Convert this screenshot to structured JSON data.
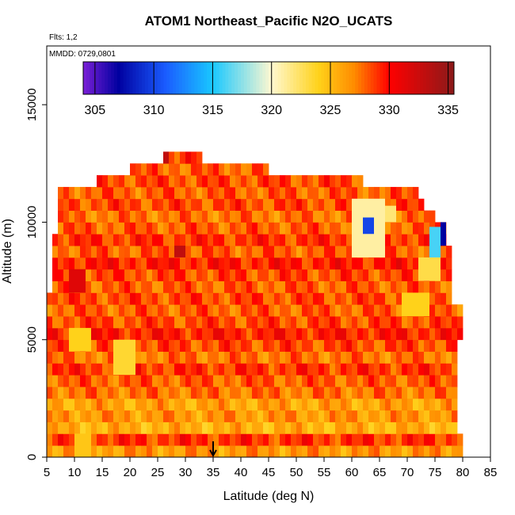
{
  "chart_data": {
    "type": "heatmap",
    "title": "ATOM1 Northeast_Pacific N2O_UCATS",
    "notes": [
      "Flts: 1,2",
      "MMDD: 0729,0801"
    ],
    "xlabel": "Latitude (deg N)",
    "ylabel": "Altitude (m)",
    "xlim": [
      5,
      85
    ],
    "ylim": [
      0,
      17500
    ],
    "xticks": [
      5,
      10,
      15,
      20,
      25,
      30,
      35,
      40,
      45,
      50,
      55,
      60,
      65,
      70,
      75,
      80,
      85
    ],
    "yticks": [
      0,
      5000,
      10000,
      15000
    ],
    "grid": false,
    "colorbar": {
      "placement": "top-inside",
      "min": 304,
      "max": 335.5,
      "ticks": [
        305,
        310,
        315,
        320,
        325,
        330,
        335
      ]
    },
    "marker": {
      "x": 35,
      "symbol": "down-arrow"
    },
    "colors": {
      "deep_purple": "#7a1fd6",
      "navy": "#0000a0",
      "blue": "#1a5cff",
      "cyan": "#19c8ff",
      "pale": "#fff8d0",
      "yellow": "#ffd21a",
      "orange": "#ff8c00",
      "red": "#ff0000",
      "dark_red": "#8b1a1a"
    },
    "bands": [
      {
        "y0": 0,
        "y1": 500,
        "x0": 5,
        "x1": 80,
        "value": 326.5
      },
      {
        "y0": 500,
        "y1": 1000,
        "x0": 5,
        "x1": 80,
        "value": 329
      },
      {
        "y0": 1000,
        "y1": 1500,
        "x0": 5,
        "x1": 79,
        "value": 325.5
      },
      {
        "y0": 1500,
        "y1": 2000,
        "x0": 5,
        "x1": 79,
        "value": 326.5
      },
      {
        "y0": 2000,
        "y1": 2500,
        "x0": 5,
        "x1": 79,
        "value": 326
      },
      {
        "y0": 2500,
        "y1": 3000,
        "x0": 5,
        "x1": 79,
        "value": 327.5
      },
      {
        "y0": 3000,
        "y1": 3500,
        "x0": 5,
        "x1": 79,
        "value": 328
      },
      {
        "y0": 3500,
        "y1": 4000,
        "x0": 5,
        "x1": 79,
        "value": 329
      },
      {
        "y0": 4000,
        "y1": 4500,
        "x0": 5,
        "x1": 79,
        "value": 327.5
      },
      {
        "y0": 4500,
        "y1": 5000,
        "x0": 5,
        "x1": 79,
        "value": 328.5
      },
      {
        "y0": 5000,
        "y1": 5500,
        "x0": 5,
        "x1": 80,
        "value": 329.5
      },
      {
        "y0": 5500,
        "y1": 6000,
        "x0": 5,
        "x1": 80,
        "value": 328.5
      },
      {
        "y0": 6000,
        "y1": 6500,
        "x0": 5,
        "x1": 80,
        "value": 328
      },
      {
        "y0": 6500,
        "y1": 7000,
        "x0": 5,
        "x1": 78,
        "value": 328.5
      },
      {
        "y0": 7000,
        "y1": 7500,
        "x0": 6,
        "x1": 78,
        "value": 328
      },
      {
        "y0": 7500,
        "y1": 8000,
        "x0": 6,
        "x1": 78,
        "value": 328.5
      },
      {
        "y0": 8000,
        "y1": 8500,
        "x0": 6,
        "x1": 78,
        "value": 329.5
      },
      {
        "y0": 8500,
        "y1": 9000,
        "x0": 6,
        "x1": 78,
        "value": 328
      },
      {
        "y0": 9000,
        "y1": 9500,
        "x0": 6,
        "x1": 77,
        "value": 329
      },
      {
        "y0": 9500,
        "y1": 10000,
        "x0": 7,
        "x1": 77,
        "value": 328
      },
      {
        "y0": 10000,
        "y1": 10500,
        "x0": 7,
        "x1": 75,
        "value": 327.5
      },
      {
        "y0": 10500,
        "y1": 11000,
        "x0": 7,
        "x1": 73,
        "value": 328.5
      },
      {
        "y0": 11000,
        "y1": 11500,
        "x0": 7,
        "x1": 72,
        "value": 328
      },
      {
        "y0": 11500,
        "y1": 12000,
        "x0": 14,
        "x1": 62,
        "value": 328.5
      },
      {
        "y0": 12000,
        "y1": 12500,
        "x0": 20,
        "x1": 45,
        "value": 328
      },
      {
        "y0": 12500,
        "y1": 13000,
        "x0": 26,
        "x1": 33,
        "value": 329
      }
    ],
    "patches": [
      {
        "y0": 8500,
        "y1": 11000,
        "x0": 60,
        "x1": 66,
        "value": 321
      },
      {
        "y0": 9500,
        "y1": 10200,
        "x0": 62,
        "x1": 64,
        "value": 310
      },
      {
        "y0": 10000,
        "y1": 10700,
        "x0": 66,
        "x1": 68,
        "value": 322
      },
      {
        "y0": 8200,
        "y1": 9800,
        "x0": 74,
        "x1": 76,
        "value": 316
      },
      {
        "y0": 9000,
        "y1": 10000,
        "x0": 76,
        "x1": 77,
        "value": 307
      },
      {
        "y0": 7500,
        "y1": 8500,
        "x0": 72,
        "x1": 76,
        "value": 323
      },
      {
        "y0": 3500,
        "y1": 5000,
        "x0": 17,
        "x1": 21,
        "value": 323.5
      },
      {
        "y0": 6000,
        "y1": 7000,
        "x0": 69,
        "x1": 74,
        "value": 324
      },
      {
        "y0": 4500,
        "y1": 5500,
        "x0": 9,
        "x1": 13,
        "value": 324
      },
      {
        "y0": 0,
        "y1": 1000,
        "x0": 10,
        "x1": 13,
        "value": 324.5
      },
      {
        "y0": 7000,
        "y1": 8000,
        "x0": 9,
        "x1": 12,
        "value": 331.5
      },
      {
        "y0": 8500,
        "y1": 9000,
        "x0": 28,
        "x1": 30,
        "value": 333
      },
      {
        "y0": 12500,
        "y1": 13000,
        "x0": 26,
        "x1": 27,
        "value": 333
      }
    ]
  }
}
